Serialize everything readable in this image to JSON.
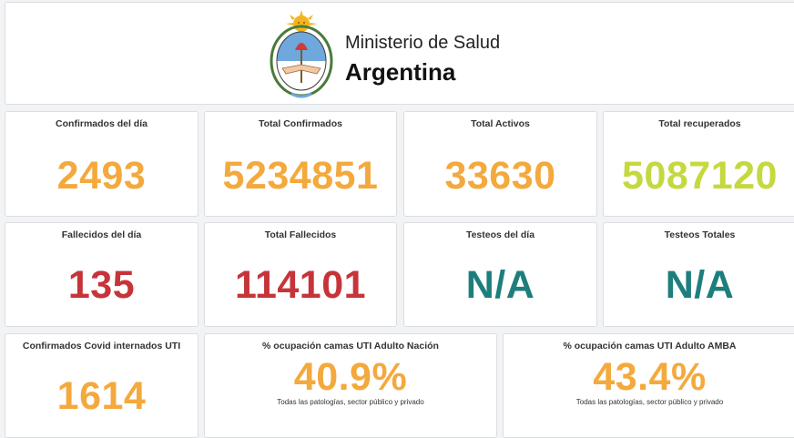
{
  "header": {
    "ministry": "Ministerio de Salud",
    "country": "Argentina"
  },
  "tiles": {
    "confirmados_dia": {
      "title": "Confirmados del día",
      "value": "2493"
    },
    "total_confirmados": {
      "title": "Total Confirmados",
      "value": "5234851"
    },
    "total_activos": {
      "title": "Total Activos",
      "value": "33630"
    },
    "total_recuperados": {
      "title": "Total recuperados",
      "value": "5087120"
    },
    "fallecidos_dia": {
      "title": "Fallecidos del día",
      "value": "135"
    },
    "total_fallecidos": {
      "title": "Total Fallecidos",
      "value": "114101"
    },
    "testeos_dia": {
      "title": "Testeos del día",
      "value": "N/A"
    },
    "testeos_totales": {
      "title": "Testeos Totales",
      "value": "N/A"
    },
    "internados_uti": {
      "title": "Confirmados Covid internados UTI",
      "value": "1614"
    },
    "uti_nacion": {
      "title": "% ocupación camas UTI Adulto Nación",
      "value": "40.9%",
      "note": "Todas las patologías, sector público y privado"
    },
    "uti_amba": {
      "title": "% ocupación camas UTI Adulto AMBA",
      "value": "43.4%",
      "note": "Todas las patologías, sector público y privado"
    }
  },
  "colors": {
    "orange": "#f4a93c",
    "lime": "#c6d840",
    "red": "#c6343a",
    "teal": "#1d7f7d"
  }
}
